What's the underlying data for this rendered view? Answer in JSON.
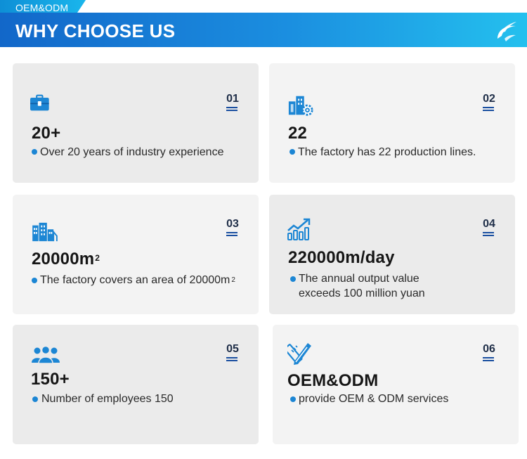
{
  "header": {
    "tag_label": "OEM&ODM",
    "title": "WHY CHOOSE US",
    "logo_icon": "swirl-logo-icon"
  },
  "colors": {
    "accent_dark": "#1267c9",
    "accent_light": "#24c0ee",
    "icon_blue": "#1c86d4"
  },
  "cards": [
    {
      "number": "01",
      "icon": "briefcase-icon",
      "value": "20+",
      "value_sup": "",
      "desc": "Over 20 years of industry experience",
      "desc_sup": "",
      "desc_line2": ""
    },
    {
      "number": "02",
      "icon": "factory-gear-icon",
      "value": "22",
      "value_sup": "",
      "desc": "The factory has 22 production lines.",
      "desc_sup": "",
      "desc_line2": ""
    },
    {
      "number": "03",
      "icon": "buildings-icon",
      "value": "20000m",
      "value_sup": "2",
      "desc": "The factory covers an area of 20000m",
      "desc_sup": "2",
      "desc_line2": ""
    },
    {
      "number": "04",
      "icon": "growth-chart-icon",
      "value": "220000m/day",
      "value_sup": "",
      "desc": "The annual output value",
      "desc_sup": "",
      "desc_line2": "exceeds 100 million yuan"
    },
    {
      "number": "05",
      "icon": "team-icon",
      "value": "150+",
      "value_sup": "",
      "desc": "Number of employees 150",
      "desc_sup": "",
      "desc_line2": ""
    },
    {
      "number": "06",
      "icon": "design-tools-icon",
      "value": "OEM&ODM",
      "value_sup": "",
      "desc": "provide OEM & ODM services",
      "desc_sup": "",
      "desc_line2": ""
    }
  ]
}
